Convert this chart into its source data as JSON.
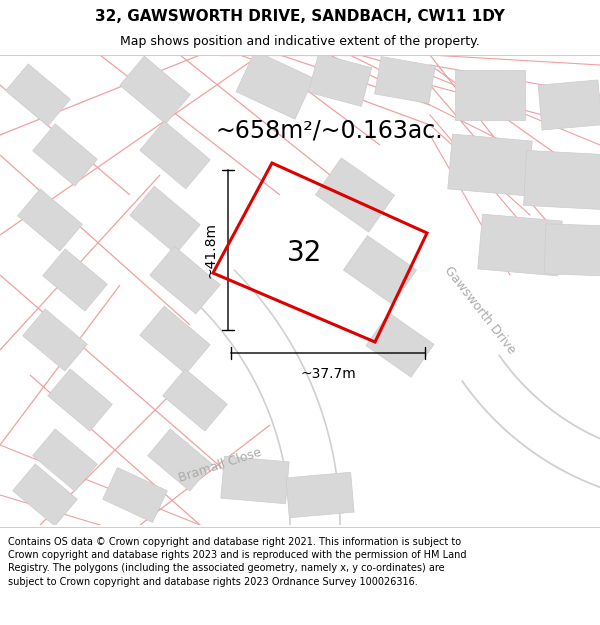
{
  "title": "32, GAWSWORTH DRIVE, SANDBACH, CW11 1DY",
  "subtitle": "Map shows position and indicative extent of the property.",
  "area_text": "~658m²/~0.163ac.",
  "number_label": "32",
  "dim_height": "~41.8m",
  "dim_width": "~37.7m",
  "road_label_1": "Gawsworth Drive",
  "road_label_2": "Bramall Close",
  "footer_text": "Contains OS data © Crown copyright and database right 2021. This information is subject to Crown copyright and database rights 2023 and is reproduced with the permission of HM Land Registry. The polygons (including the associated geometry, namely x, y co-ordinates) are subject to Crown copyright and database rights 2023 Ordnance Survey 100026316.",
  "map_bg": "#f2f0f0",
  "building_color": "#d8d8d8",
  "building_edge": "#cccccc",
  "road_line_color": "#f0a0a0",
  "gawsworth_road_color": "#d0d0d0",
  "plot_outline_color": "#dd0000",
  "text_color": "#000000",
  "road_label_color": "#aaaaaa",
  "title_fontsize": 11,
  "subtitle_fontsize": 9,
  "area_fontsize": 17,
  "number_fontsize": 20,
  "dim_fontsize": 10,
  "road_fontsize": 9,
  "footer_fontsize": 7
}
